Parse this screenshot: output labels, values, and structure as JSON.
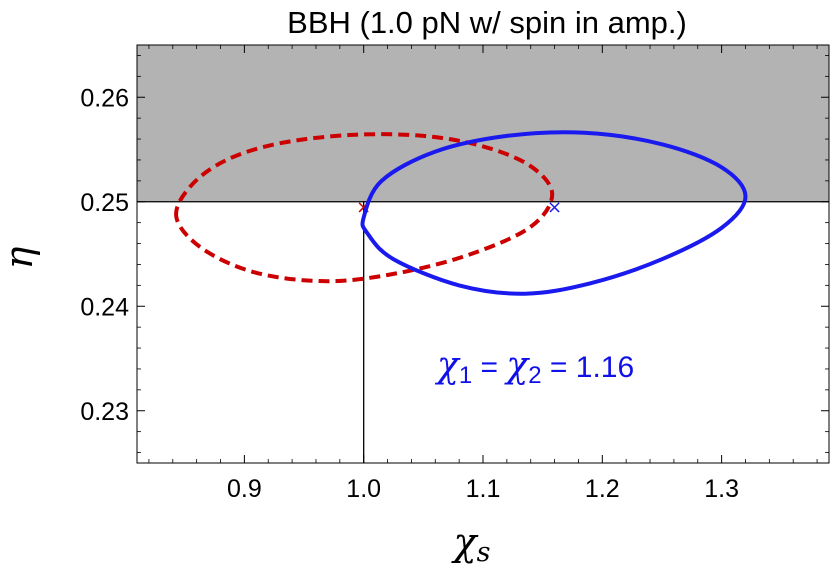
{
  "chart_data": {
    "type": "scatter",
    "title": "BBH (1.0 pN w/ spin in amp.)",
    "xlabel": "χ",
    "xlabel_sub": "s",
    "ylabel": "η",
    "xlim": [
      0.81,
      1.39
    ],
    "ylim": [
      0.225,
      0.265
    ],
    "xticks": [
      0.9,
      1.0,
      1.1,
      1.2,
      1.3
    ],
    "xtick_labels": [
      "0.9",
      "1.0",
      "1.1",
      "1.2",
      "1.3"
    ],
    "yticks": [
      0.23,
      0.24,
      0.25,
      0.26
    ],
    "ytick_labels": [
      "0.23",
      "0.24",
      "0.25",
      "0.26"
    ],
    "shaded_region": {
      "y_from": 0.25,
      "y_to": 0.265,
      "color": "#b3b3b3"
    },
    "reference_lines": {
      "hline_y": 0.25,
      "vline_x": 1.0,
      "vline_y_to": 0.25
    },
    "grid": false,
    "series": [
      {
        "style": "dashed-ellipse",
        "color": "#cc0000",
        "marker": {
          "x": 1.0,
          "y": 0.2495,
          "symbol": "×"
        },
        "ellipse": [
          [
            0.843,
            0.2485
          ],
          [
            0.855,
            0.2515
          ],
          [
            0.885,
            0.254
          ],
          [
            0.93,
            0.2556
          ],
          [
            0.99,
            0.2564
          ],
          [
            1.05,
            0.2563
          ],
          [
            1.1,
            0.2553
          ],
          [
            1.14,
            0.2534
          ],
          [
            1.158,
            0.2507
          ],
          [
            1.14,
            0.2476
          ],
          [
            1.09,
            0.245
          ],
          [
            1.03,
            0.2432
          ],
          [
            0.97,
            0.2424
          ],
          [
            0.91,
            0.2432
          ],
          [
            0.865,
            0.2455
          ],
          [
            0.843,
            0.2485
          ]
        ]
      },
      {
        "style": "solid-ellipse",
        "color": "#1a1aee",
        "marker": {
          "x": 1.16,
          "y": 0.2495,
          "symbol": "×"
        },
        "ellipse": [
          [
            1.0,
            0.2485
          ],
          [
            1.015,
            0.252
          ],
          [
            1.06,
            0.2548
          ],
          [
            1.12,
            0.2563
          ],
          [
            1.185,
            0.2566
          ],
          [
            1.25,
            0.2555
          ],
          [
            1.3,
            0.2533
          ],
          [
            1.32,
            0.2505
          ],
          [
            1.3,
            0.2475
          ],
          [
            1.25,
            0.2445
          ],
          [
            1.19,
            0.2422
          ],
          [
            1.135,
            0.2412
          ],
          [
            1.08,
            0.242
          ],
          [
            1.025,
            0.2445
          ],
          [
            1.003,
            0.247
          ],
          [
            1.0,
            0.2485
          ]
        ]
      }
    ],
    "annotation": {
      "sym1": "χ",
      "sub1": "1",
      "eq1": " = ",
      "sym2": "χ",
      "sub2": "2",
      "eq2": " = 1.16",
      "color": "#1010e8"
    }
  }
}
